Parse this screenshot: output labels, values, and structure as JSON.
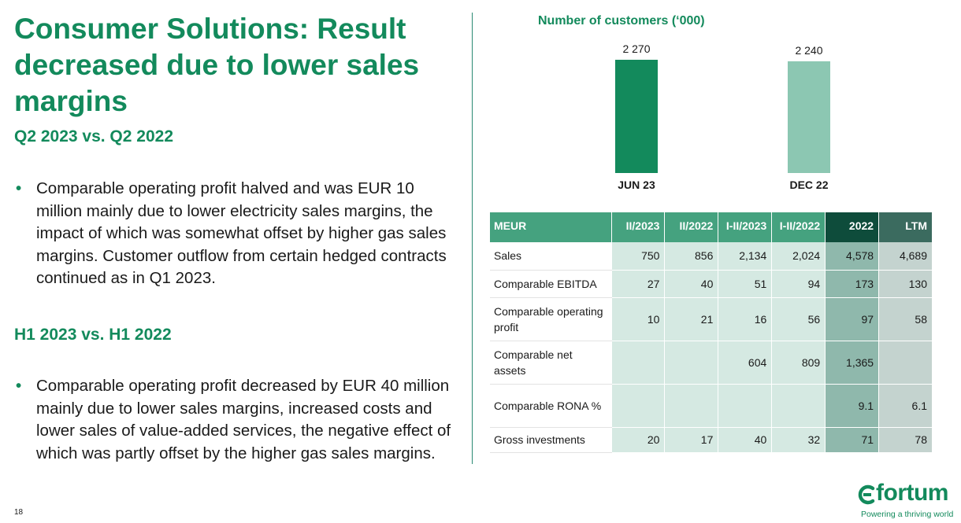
{
  "slide": {
    "title": "Consumer Solutions: Result decreased due to lower sales margins",
    "section1_heading": "Q2 2023 vs. Q2 2022",
    "section1_bullet": "Comparable operating profit halved and was EUR 10 million mainly due to lower electricity sales margins, the impact of which was somewhat offset by higher gas sales margins. Customer outflow from certain hedged contracts continued as in Q1 2023.",
    "section2_heading": "H1 2023 vs. H1 2022",
    "section2_bullet": "Comparable operating profit decreased by EUR 40 million mainly due to lower sales margins, increased costs and lower sales of value-added services, the negative effect of which was partly offset by the higher gas sales margins.",
    "page_number": "18",
    "bullet_glyph": "•"
  },
  "chart_data": {
    "type": "bar",
    "title": "Number of customers (‘000)",
    "categories": [
      "JUN 23",
      "DEC 22"
    ],
    "values": [
      2270,
      2240
    ],
    "value_labels": [
      "2 270",
      "2 240"
    ],
    "colors": [
      "#138a5c",
      "#8cc7b2"
    ]
  },
  "table": {
    "headers": [
      "MEUR",
      "II/2023",
      "II/2022",
      "I-II/2023",
      "I-II/2022",
      "2022",
      "LTM"
    ],
    "rows": [
      {
        "label": "Sales",
        "values": [
          "750",
          "856",
          "2,134",
          "2,024",
          "4,578",
          "4,689"
        ]
      },
      {
        "label": "Comparable EBITDA",
        "values": [
          "27",
          "40",
          "51",
          "94",
          "173",
          "130"
        ]
      },
      {
        "label": "Comparable operating profit",
        "values": [
          "10",
          "21",
          "16",
          "56",
          "97",
          "58"
        ]
      },
      {
        "label": "Comparable net assets",
        "values": [
          "",
          "",
          "604",
          "809",
          "1,365",
          ""
        ]
      },
      {
        "label": "Comparable RONA %",
        "values": [
          "",
          "",
          "",
          "",
          "9.1",
          "6.1"
        ]
      },
      {
        "label": "Gross investments",
        "values": [
          "20",
          "17",
          "40",
          "32",
          "71",
          "78"
        ]
      }
    ]
  },
  "logo": {
    "wordmark": "fortum",
    "tagline": "Powering a thriving world"
  }
}
